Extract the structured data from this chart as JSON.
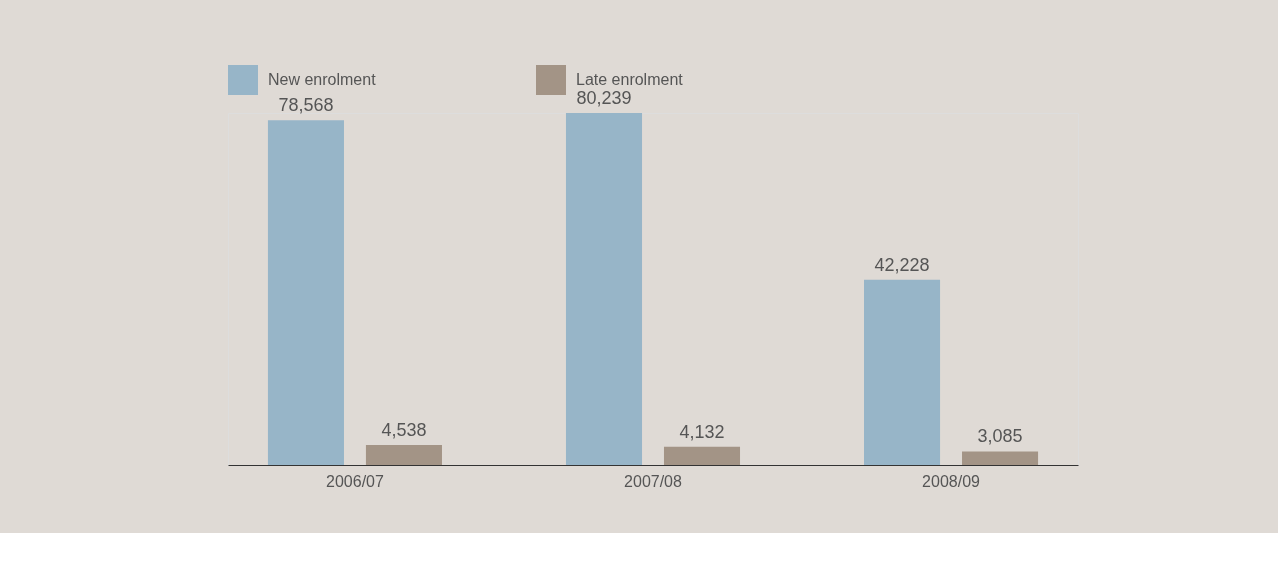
{
  "chart_data": {
    "type": "bar",
    "categories": [
      "2006/07",
      "2007/08",
      "2008/09"
    ],
    "series": [
      {
        "name": "New enrolment",
        "color": "#97b5c8",
        "values": [
          78568,
          80239,
          42228
        ],
        "value_labels": [
          "78,568",
          "80,239",
          "42,228"
        ]
      },
      {
        "name": "Late enrolment",
        "color": "#a39486",
        "values": [
          4538,
          4132,
          3085
        ],
        "value_labels": [
          "4,538",
          "4,132",
          "3,085"
        ]
      }
    ],
    "legend": "top",
    "grid": false
  }
}
